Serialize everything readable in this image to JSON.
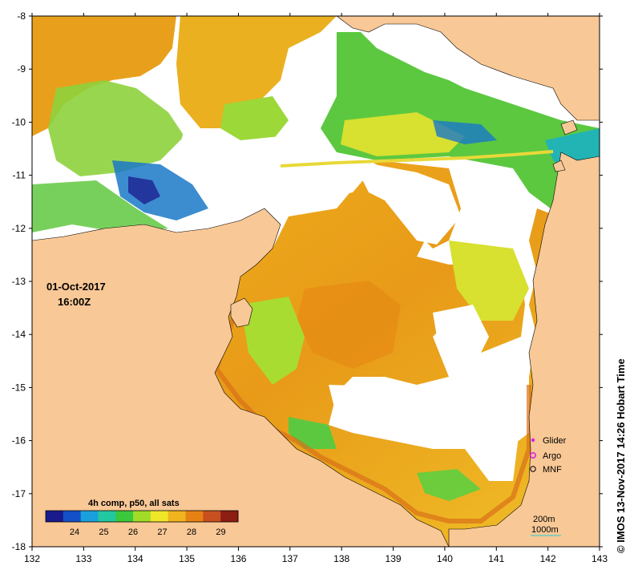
{
  "map": {
    "x_ticks": [
      "132",
      "133",
      "134",
      "135",
      "136",
      "137",
      "138",
      "139",
      "140",
      "141",
      "142",
      "143"
    ],
    "y_ticks": [
      "-8",
      "-9",
      "-10",
      "-11",
      "-12",
      "-13",
      "-14",
      "-15",
      "-16",
      "-17",
      "-18"
    ],
    "date": "01-Oct-2017",
    "time": "16:00Z",
    "colorbar": {
      "title": "4h comp, p50, all sats",
      "ticks": [
        "24",
        "25",
        "26",
        "27",
        "28",
        "29"
      ],
      "colors": [
        "#1a1a8c",
        "#1450c8",
        "#1aa0dc",
        "#22c8a0",
        "#3cc83c",
        "#a0dc28",
        "#f0e628",
        "#f0b41e",
        "#e68214",
        "#c8501e",
        "#8c1e14"
      ]
    },
    "legend": {
      "glider": "Glider",
      "argo": "Argo",
      "mnf": "MNF",
      "glider_color": "#e020e0",
      "argo_color": "#e020e0",
      "mnf_color": "#000000"
    },
    "contours": {
      "c200": "200m",
      "c1000": "1000m",
      "contour_color": "#50c8c8"
    },
    "credit": "© IMOS 13-Nov-2017 14:26 Hobart Time",
    "land_color": "#f8c896"
  }
}
